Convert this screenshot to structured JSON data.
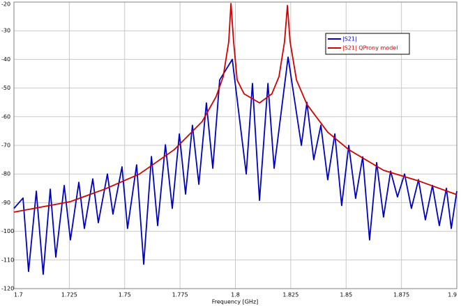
{
  "chart_data": {
    "type": "line",
    "xlabel": "Frequency [GHz]",
    "xlim": [
      1.7,
      1.9
    ],
    "xticks": [
      1.7,
      1.725,
      1.75,
      1.775,
      1.8,
      1.825,
      1.85,
      1.875,
      1.9
    ],
    "ylim": [
      -120,
      -20
    ],
    "yticks": [
      -120,
      -110,
      -100,
      -90,
      -80,
      -70,
      -60,
      -50,
      -40,
      -30,
      -20
    ],
    "grid": true,
    "legend": "upper right",
    "series": [
      {
        "name": "|S21|",
        "color": "#0000c0",
        "x": [
          1.7,
          1.7041,
          1.7066,
          1.7101,
          1.7132,
          1.7164,
          1.7189,
          1.7227,
          1.7255,
          1.7293,
          1.7318,
          1.7356,
          1.7381,
          1.7422,
          1.7447,
          1.7488,
          1.7513,
          1.7554,
          1.7586,
          1.7621,
          1.7649,
          1.7684,
          1.7715,
          1.7747,
          1.7775,
          1.7806,
          1.7835,
          1.7869,
          1.7898,
          1.7929,
          1.7986,
          1.8049,
          1.8077,
          1.8109,
          1.8147,
          1.8175,
          1.8238,
          1.8298,
          1.8323,
          1.8354,
          1.8386,
          1.8417,
          1.8449,
          1.848,
          1.8512,
          1.8543,
          1.8575,
          1.8606,
          1.8638,
          1.8669,
          1.8701,
          1.8732,
          1.8764,
          1.8795,
          1.8827,
          1.8858,
          1.889,
          1.8921,
          1.8953,
          1.8975,
          1.9
        ],
        "values": [
          -92,
          -88.4,
          -114,
          -86,
          -115,
          -85.3,
          -109,
          -84,
          -103,
          -82.9,
          -99,
          -81.7,
          -97,
          -80,
          -94,
          -77.5,
          -99,
          -76.8,
          -111.5,
          -73.9,
          -98,
          -69.8,
          -92,
          -66,
          -87,
          -63,
          -83.6,
          -55.2,
          -78,
          -47.2,
          -40,
          -80,
          -48.4,
          -89.2,
          -48.4,
          -78,
          -39.2,
          -70,
          -55,
          -75,
          -63,
          -82,
          -66,
          -91,
          -70,
          -88.5,
          -74,
          -103,
          -76,
          -95,
          -79,
          -88,
          -80,
          -92,
          -82,
          -96,
          -84,
          -98,
          -85,
          -99,
          -86
        ]
      },
      {
        "name": "|S21|  QProny model",
        "color": "#d00000",
        "x": [
          1.7,
          1.7252,
          1.7409,
          1.7567,
          1.7724,
          1.785,
          1.7913,
          1.7945,
          1.797,
          1.798,
          1.7992,
          1.8008,
          1.8039,
          1.8109,
          1.8165,
          1.8197,
          1.8222,
          1.8235,
          1.8247,
          1.8276,
          1.8323,
          1.8417,
          1.8512,
          1.8669,
          1.8827,
          1.9
        ],
        "values": [
          -93.3,
          -89.7,
          -85.3,
          -80,
          -71.5,
          -61.7,
          -53,
          -46,
          -33.8,
          -20.5,
          -33.8,
          -47.2,
          -52,
          -55.2,
          -52,
          -46,
          -33.8,
          -21.2,
          -33.8,
          -47.2,
          -55.7,
          -65.4,
          -71.5,
          -78.7,
          -82.4,
          -87.2
        ]
      }
    ]
  }
}
